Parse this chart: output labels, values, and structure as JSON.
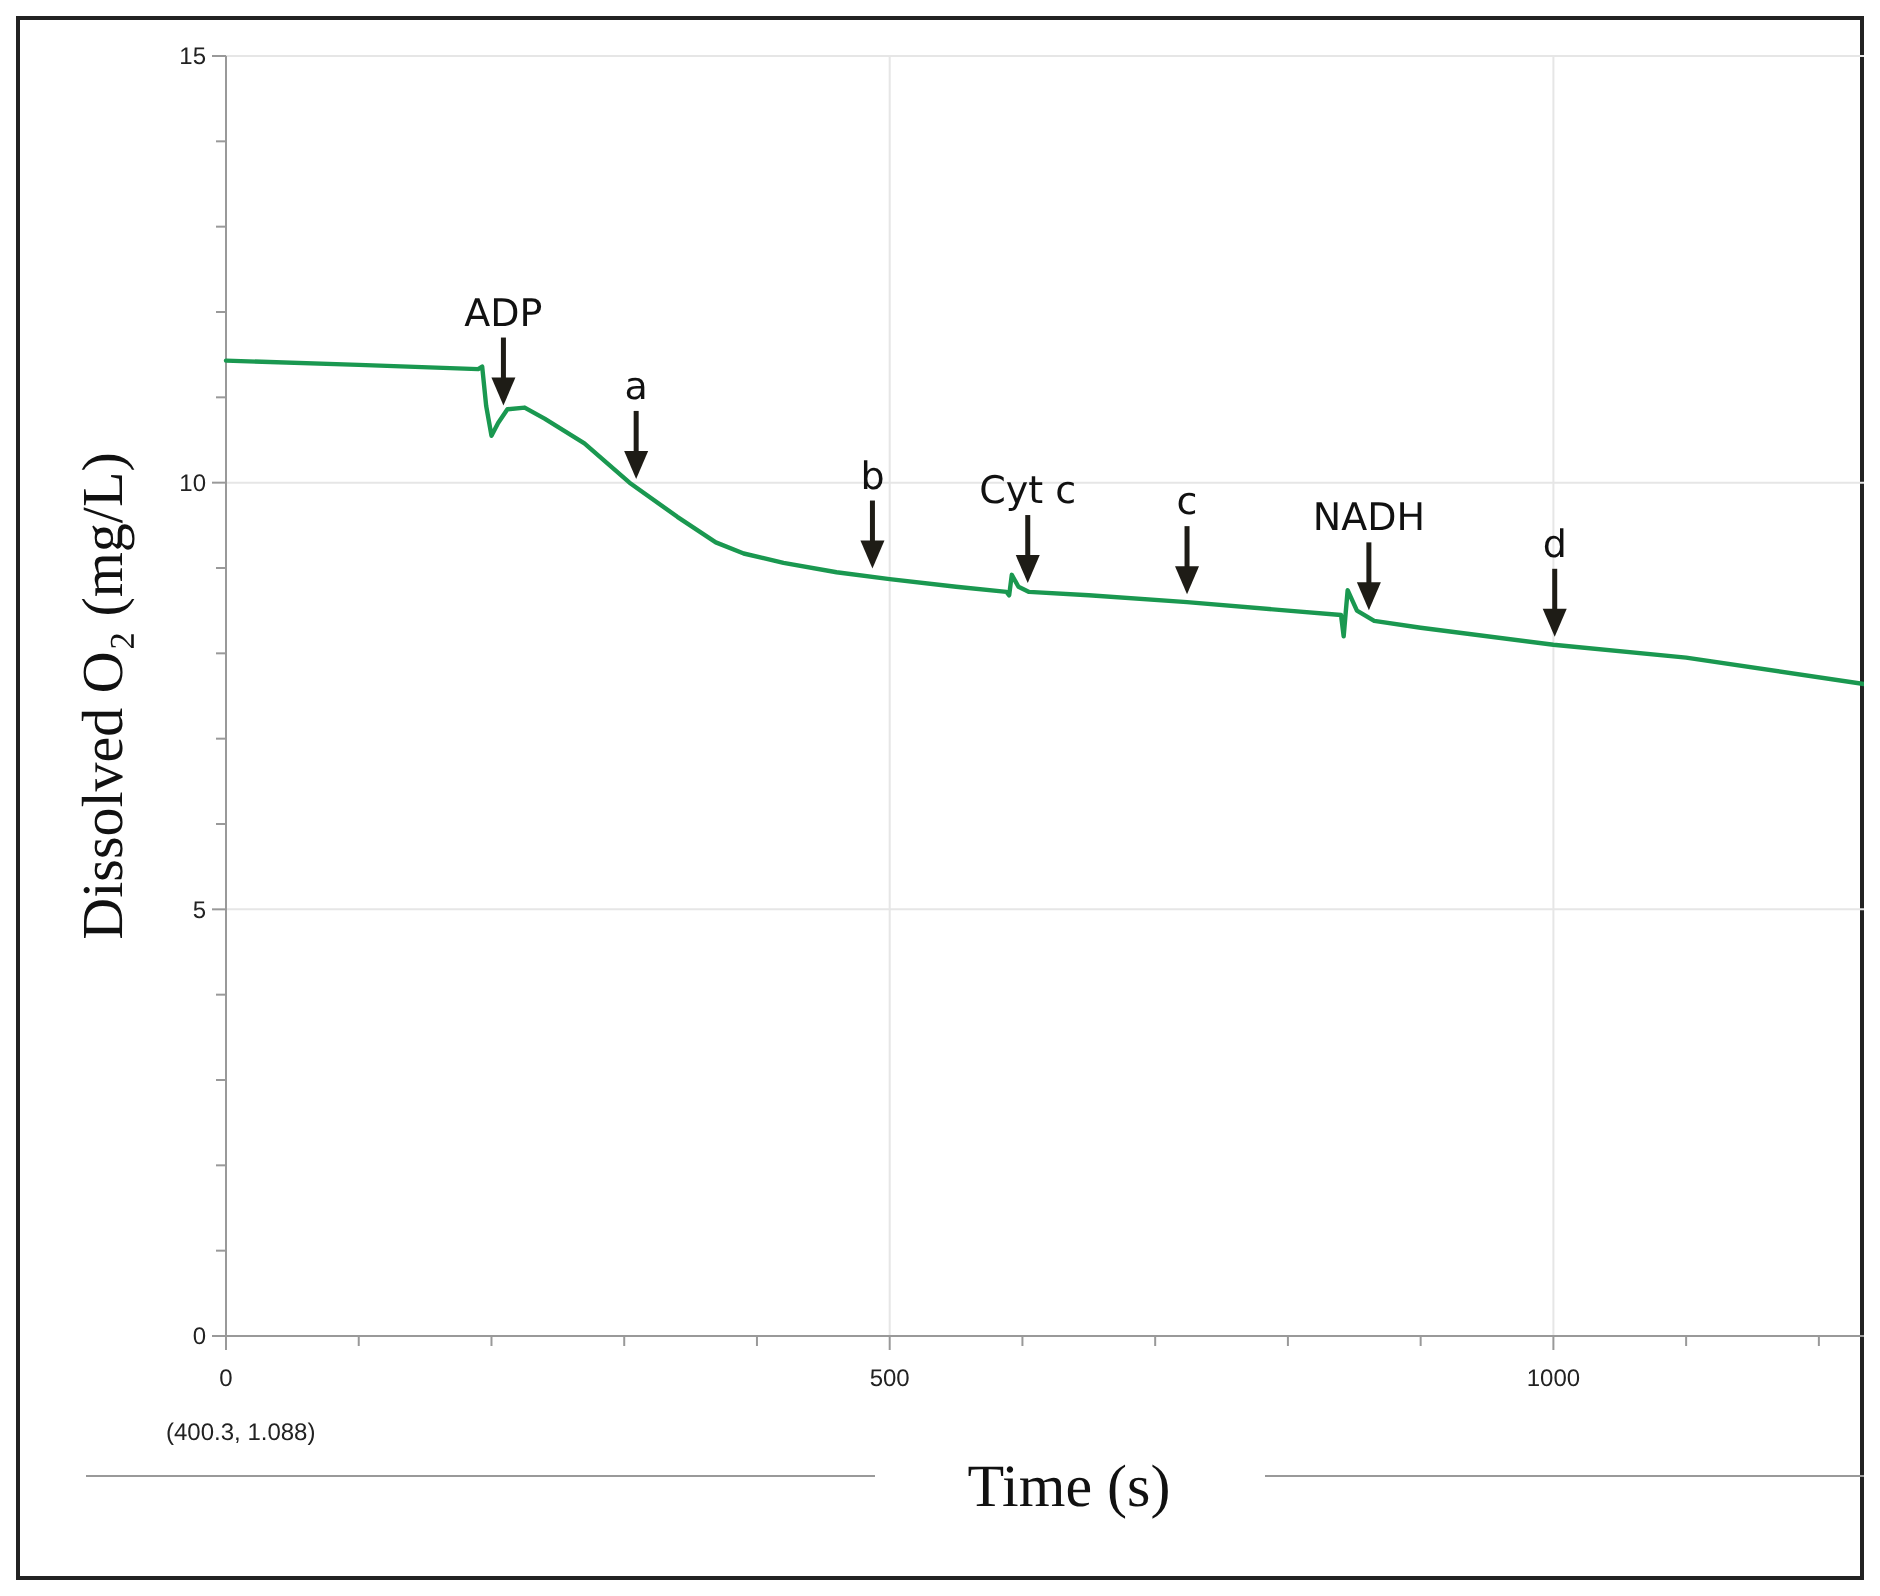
{
  "chart_data": {
    "type": "line",
    "xlabel": "Time (s)",
    "ylabel": "Dissolved O₂ (mg/L)",
    "x": [
      0,
      100,
      190,
      193,
      196,
      200,
      205,
      212,
      225,
      240,
      270,
      304,
      340,
      369,
      390,
      420,
      460,
      500,
      550,
      588,
      590,
      592,
      597,
      605,
      650,
      724,
      800,
      840,
      842,
      845,
      852,
      865,
      900,
      1000,
      1100,
      1234
    ],
    "series": [
      {
        "color": "#1a9850",
        "values": [
          11.43,
          11.38,
          11.33,
          11.36,
          10.9,
          10.55,
          10.7,
          10.86,
          10.88,
          10.75,
          10.46,
          10.0,
          9.6,
          9.3,
          9.17,
          9.06,
          8.95,
          8.87,
          8.78,
          8.72,
          8.68,
          8.92,
          8.78,
          8.72,
          8.68,
          8.6,
          8.5,
          8.45,
          8.2,
          8.74,
          8.5,
          8.38,
          8.3,
          8.1,
          7.95,
          7.64
        ]
      }
    ],
    "xlim": [
      0,
      1234
    ],
    "xticks": [
      0,
      {
        "value": 100,
        "label": null
      },
      {
        "value": 200,
        "label": null
      },
      {
        "value": 300,
        "label": null
      },
      {
        "value": 400,
        "label": null
      },
      500,
      {
        "value": 600,
        "label": null
      },
      {
        "value": 700,
        "label": null
      },
      {
        "value": 800,
        "label": null
      },
      {
        "value": 900,
        "label": null
      },
      1000,
      {
        "value": 1100,
        "label": null
      },
      {
        "value": 1200,
        "label": null
      }
    ],
    "ylim": [
      0,
      15
    ],
    "yticks": [
      0,
      {
        "value": 1,
        "label": null
      },
      {
        "value": 2,
        "label": null
      },
      {
        "value": 3,
        "label": null
      },
      {
        "value": 4,
        "label": null
      },
      5,
      {
        "value": 6,
        "label": null
      },
      {
        "value": 7,
        "label": null
      },
      {
        "value": 8,
        "label": null
      },
      {
        "value": 9,
        "label": null
      },
      10,
      {
        "value": 11,
        "label": null
      },
      {
        "value": 12,
        "label": null
      },
      {
        "value": 13,
        "label": null
      },
      {
        "value": 14,
        "label": null
      },
      15
    ],
    "grid": true,
    "marker": "none",
    "line_style": "solid",
    "annotations": [
      {
        "text": "ADP",
        "x": 209,
        "y": 10.81
      },
      {
        "text": "a",
        "x": 309,
        "y": 9.95
      },
      {
        "text": "b",
        "x": 487,
        "y": 8.9
      },
      {
        "text": "Cyt c",
        "x": 604,
        "y": 8.73
      },
      {
        "text": "c",
        "x": 724,
        "y": 8.6
      },
      {
        "text": "NADH",
        "x": 861,
        "y": 8.41
      },
      {
        "text": "d",
        "x": 1001,
        "y": 8.1
      },
      "(400.3, 1.088)"
    ]
  }
}
